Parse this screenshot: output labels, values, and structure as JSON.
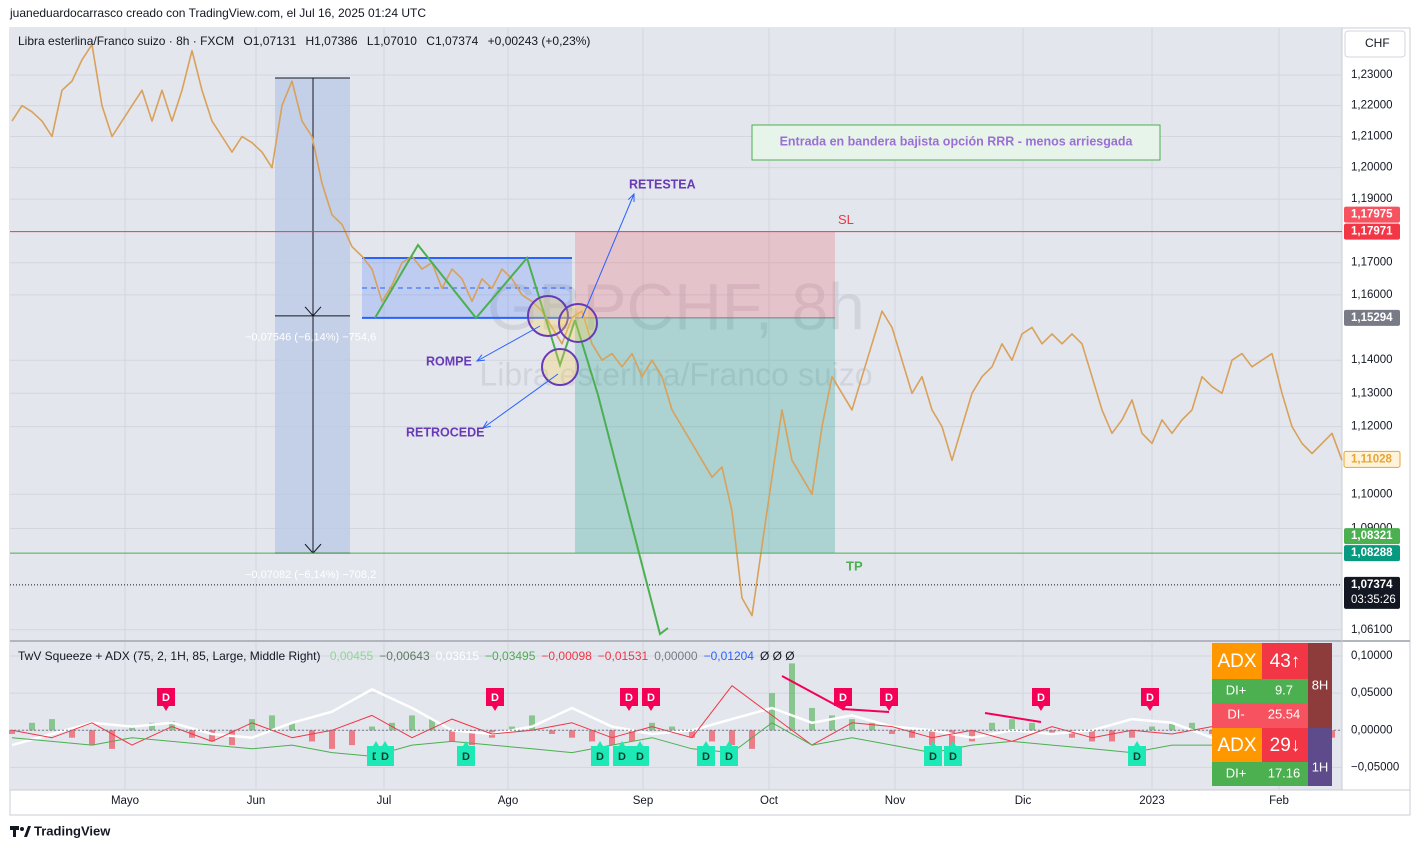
{
  "header": {
    "caption": "juaneduardocarrasco creado con TradingView.com, el Jul 16, 2025 01:24 UTC"
  },
  "footer": {
    "brand": "TradingView"
  },
  "chart_data": [
    {
      "type": "line",
      "title": "Libra esterlina/Franco suizo · 8h · FXCM",
      "ohlc_legend": [
        "O1,07131",
        "H1,07386",
        "L1,07010",
        "C1,07374",
        "+0,00243 (+0,23%)"
      ],
      "watermark": [
        "GBPCHF, 8h",
        "Libra esterlina/Franco suizo"
      ],
      "currency": "CHF",
      "log_scale": true,
      "grid": true,
      "color": "#d9a15a",
      "xlim": [
        -0.2,
        133
      ],
      "xticks": [
        {
          "value": 11.3,
          "label": "Mayo"
        },
        {
          "value": 24.4,
          "label": "Jun"
        },
        {
          "value": 37.2,
          "label": "Jul"
        },
        {
          "value": 49.6,
          "label": "Ago"
        },
        {
          "value": 63.1,
          "label": "Sep"
        },
        {
          "value": 75.7,
          "label": "Oct"
        },
        {
          "value": 88.3,
          "label": "Nov"
        },
        {
          "value": 101.1,
          "label": "Dic"
        },
        {
          "value": 114,
          "label": "2023"
        },
        {
          "value": 126.7,
          "label": "Feb"
        }
      ],
      "ylim": [
        1.0581,
        1.2455
      ],
      "yticks": [
        {
          "value": 1.23,
          "label": "1,23000"
        },
        {
          "value": 1.22,
          "label": "1,22000"
        },
        {
          "value": 1.21,
          "label": "1,21000"
        },
        {
          "value": 1.2,
          "label": "1,20000"
        },
        {
          "value": 1.19,
          "label": "1,19000"
        },
        {
          "value": 1.17,
          "label": "1,17000"
        },
        {
          "value": 1.16,
          "label": "1,16000"
        },
        {
          "value": 1.14,
          "label": "1,14000"
        },
        {
          "value": 1.13,
          "label": "1,13000"
        },
        {
          "value": 1.12,
          "label": "1,12000"
        },
        {
          "value": 1.1,
          "label": "1,10000"
        },
        {
          "value": 1.09,
          "label": "1,09000"
        },
        {
          "value": 1.061,
          "label": "1,06100"
        }
      ],
      "x": [
        0,
        1,
        2,
        3,
        4,
        5,
        6,
        7,
        8,
        9,
        10,
        11,
        12,
        13,
        14,
        15,
        16,
        17,
        18,
        19,
        20,
        21,
        22,
        23,
        24,
        25,
        26,
        27,
        28,
        29,
        30,
        31,
        32,
        33,
        34,
        35,
        36,
        37,
        38,
        39,
        40,
        41,
        42,
        43,
        44,
        45,
        46,
        47,
        48,
        49,
        50,
        51,
        52,
        53,
        54,
        55,
        56,
        57,
        58,
        59,
        60,
        61,
        62,
        63,
        64,
        65,
        66,
        67,
        68,
        69,
        70,
        71,
        72,
        73,
        74,
        75,
        76,
        77,
        78,
        79,
        80,
        81,
        82,
        83,
        84,
        85,
        86,
        87,
        88,
        89,
        90,
        91,
        92,
        93,
        94,
        95,
        96,
        97,
        98,
        99,
        100,
        101,
        102,
        103,
        104,
        105,
        106,
        107,
        108,
        109,
        110,
        111,
        112,
        113,
        114,
        115,
        116,
        117,
        118,
        119,
        120,
        121,
        122,
        123,
        124,
        125,
        126,
        127,
        128,
        129,
        130,
        131,
        132,
        133
      ],
      "values": [
        1.215,
        1.22,
        1.218,
        1.215,
        1.21,
        1.225,
        1.228,
        1.235,
        1.24,
        1.22,
        1.21,
        1.215,
        1.22,
        1.225,
        1.215,
        1.225,
        1.215,
        1.225,
        1.238,
        1.225,
        1.215,
        1.21,
        1.205,
        1.21,
        1.208,
        1.205,
        1.2,
        1.22,
        1.228,
        1.215,
        1.21,
        1.195,
        1.185,
        1.182,
        1.175,
        1.172,
        1.168,
        1.158,
        1.163,
        1.17,
        1.172,
        1.168,
        1.17,
        1.162,
        1.168,
        1.165,
        1.158,
        1.165,
        1.162,
        1.168,
        1.165,
        1.16,
        1.158,
        1.155,
        1.15,
        1.145,
        1.153,
        1.155,
        1.145,
        1.14,
        1.142,
        1.138,
        1.142,
        1.135,
        1.14,
        1.135,
        1.125,
        1.12,
        1.115,
        1.11,
        1.105,
        1.108,
        1.095,
        1.07,
        1.065,
        1.085,
        1.105,
        1.125,
        1.11,
        1.105,
        1.1,
        1.12,
        1.135,
        1.13,
        1.125,
        1.135,
        1.145,
        1.155,
        1.15,
        1.14,
        1.13,
        1.135,
        1.125,
        1.12,
        1.11,
        1.12,
        1.13,
        1.135,
        1.138,
        1.145,
        1.14,
        1.148,
        1.15,
        1.145,
        1.148,
        1.145,
        1.148,
        1.145,
        1.135,
        1.125,
        1.118,
        1.122,
        1.128,
        1.118,
        1.115,
        1.122,
        1.118,
        1.122,
        1.125,
        1.135,
        1.132,
        1.13,
        1.14,
        1.142,
        1.138,
        1.14,
        1.142,
        1.13,
        1.12,
        1.115,
        1.112,
        1.115,
        1.118,
        1.11
      ],
      "price_labels": [
        {
          "value": 1.17975,
          "label": "1,17975",
          "color": "#f7525f",
          "text_color": "#ffffff"
        },
        {
          "value": 1.17971,
          "label": "1,17971",
          "color": "#f23645",
          "text_color": "#ffffff"
        },
        {
          "value": 1.15294,
          "label": "1,15294",
          "color": "#787b86",
          "text_color": "#ffffff"
        },
        {
          "value": 1.11028,
          "label": "1,11028",
          "color": "#fff3dc",
          "text_color": "#e8a530"
        },
        {
          "value": 1.08321,
          "label": "1,08321",
          "color": "#4caf50",
          "text_color": "#ffffff"
        },
        {
          "value": 1.08288,
          "label": "1,08288",
          "color": "#089981",
          "text_color": "#ffffff"
        },
        {
          "value": 1.07374,
          "label": "1,07374",
          "color": "#131722",
          "text_color": "#ffffff"
        }
      ],
      "countdown": "03:35:26",
      "sl_label": "SL",
      "tp_label": "TP",
      "measure_labels": [
        "−0,07546 (−6,14%) −754,6",
        "−0,07082 (−6,14%) −708,2"
      ],
      "note": "Entrada en bandera bajista opción RRR - menos arriesgada",
      "callouts": [
        "RETESTEA",
        "ROMPE",
        "RETROCEDE"
      ]
    },
    {
      "type": "squeeze",
      "title": "TwV Squeeze + ADX (75, 2, 1H, 85, Large, Middle Right)",
      "legend_values": [
        {
          "text": "0,00455",
          "color": "#8fd694"
        },
        {
          "text": "−0,00643",
          "color": "#5d7a5f"
        },
        {
          "text": "0,03615",
          "color": "#ffffff"
        },
        {
          "text": "−0,03495",
          "color": "#4caf50"
        },
        {
          "text": "−0,00098",
          "color": "#f23645"
        },
        {
          "text": "−0,01531",
          "color": "#f23645"
        },
        {
          "text": "0,00000",
          "color": "#787b86"
        },
        {
          "text": "−0,01204",
          "color": "#2962ff"
        },
        {
          "text": "Ø  Ø  Ø",
          "color": "#131722"
        }
      ],
      "xlim": [
        -0.2,
        133
      ],
      "ylim": [
        -0.0804,
        0.1188
      ],
      "yticks": [
        {
          "value": 0.1,
          "label": "0,10000"
        },
        {
          "value": 0.05,
          "label": "0,05000"
        },
        {
          "value": 0,
          "label": "0,00000"
        },
        {
          "value": -0.05,
          "label": "−0,05000"
        }
      ],
      "series": [
        {
          "kind": "histogram",
          "positive_color": "#4caf50",
          "negative_color": "#f23645",
          "x": [
            0,
            2,
            4,
            6,
            8,
            10,
            12,
            14,
            16,
            18,
            20,
            22,
            24,
            26,
            28,
            30,
            32,
            34,
            36,
            38,
            40,
            42,
            44,
            46,
            48,
            50,
            52,
            54,
            56,
            58,
            60,
            62,
            64,
            66,
            68,
            70,
            72,
            74,
            76,
            78,
            80,
            82,
            84,
            86,
            88,
            90,
            92,
            94,
            96,
            98,
            100,
            102,
            104,
            106,
            108,
            110,
            112,
            114,
            116,
            118,
            120,
            122,
            124,
            126,
            128,
            130,
            132
          ],
          "values": [
            -0.005,
            0.01,
            0.015,
            -0.01,
            -0.02,
            -0.025,
            0.005,
            0.01,
            0.012,
            -0.01,
            -0.015,
            -0.02,
            0.015,
            0.02,
            0.01,
            -0.015,
            -0.025,
            -0.02,
            0.005,
            0.01,
            0.02,
            0.015,
            -0.015,
            -0.02,
            -0.01,
            0.005,
            0.02,
            -0.005,
            -0.01,
            -0.015,
            -0.02,
            -0.015,
            0.01,
            0.005,
            -0.01,
            -0.015,
            -0.02,
            -0.025,
            0.05,
            0.09,
            0.03,
            0.02,
            0.015,
            0.01,
            -0.005,
            -0.01,
            -0.02,
            -0.025,
            -0.015,
            0.01,
            0.015,
            0.01,
            -0.005,
            -0.01,
            -0.015,
            -0.015,
            -0.01,
            0.005,
            0.01,
            0.01,
            -0.005,
            -0.01,
            0.005,
            0.008,
            -0.01,
            -0.015,
            -0.01
          ]
        },
        {
          "kind": "line",
          "color": "#ffffff",
          "width": 2.5,
          "x": [
            0,
            4,
            8,
            12,
            16,
            20,
            24,
            28,
            32,
            36,
            40,
            44,
            48,
            52,
            56,
            60,
            64,
            68,
            72,
            76,
            80,
            84,
            88,
            92,
            96,
            100,
            104,
            108,
            112,
            116,
            120,
            124,
            128,
            132
          ],
          "values": [
            -0.02,
            -0.005,
            0.01,
            0.005,
            0.01,
            -0.005,
            -0.01,
            0.01,
            0.025,
            0.055,
            0.03,
            0,
            -0.005,
            0.005,
            0.03,
            0.005,
            -0.005,
            0,
            0.015,
            0.03,
            0.01,
            0.02,
            0.005,
            0,
            -0.01,
            0,
            -0.005,
            0,
            0.015,
            0.01,
            -0.01,
            -0.005,
            -0.01,
            -0.015
          ]
        },
        {
          "kind": "line",
          "color": "#f23645",
          "width": 1,
          "x": [
            0,
            4,
            8,
            12,
            16,
            20,
            24,
            28,
            32,
            36,
            40,
            44,
            48,
            52,
            56,
            60,
            64,
            68,
            72,
            76,
            80,
            84,
            88,
            92,
            96,
            100,
            104,
            108,
            112,
            116,
            120,
            124,
            128,
            132
          ],
          "values": [
            0,
            -0.01,
            0.01,
            -0.02,
            0.005,
            -0.015,
            0.01,
            -0.01,
            0,
            0.02,
            -0.01,
            0.015,
            -0.005,
            0,
            0.01,
            -0.01,
            0.005,
            -0.01,
            0.06,
            0.02,
            -0.02,
            0.01,
            0.005,
            -0.01,
            0,
            -0.015,
            0.005,
            -0.01,
            0,
            -0.005,
            0.005,
            -0.01,
            0,
            -0.005
          ]
        },
        {
          "kind": "line",
          "color": "#4caf50",
          "width": 1,
          "x": [
            0,
            4,
            8,
            12,
            16,
            20,
            24,
            28,
            32,
            36,
            40,
            44,
            48,
            52,
            56,
            60,
            64,
            68,
            72,
            76,
            80,
            84,
            88,
            92,
            96,
            100,
            104,
            108,
            112,
            116,
            120,
            124,
            128,
            132
          ],
          "values": [
            -0.01,
            -0.015,
            -0.02,
            -0.01,
            -0.015,
            -0.02,
            -0.025,
            -0.02,
            -0.03,
            -0.035,
            -0.02,
            -0.015,
            -0.02,
            -0.025,
            -0.03,
            -0.02,
            -0.01,
            -0.025,
            -0.03,
            0.01,
            -0.02,
            -0.01,
            -0.02,
            -0.03,
            -0.02,
            -0.015,
            -0.02,
            -0.025,
            -0.03,
            -0.02,
            -0.02,
            -0.025,
            -0.02,
            -0.025
          ]
        }
      ],
      "signals": {
        "label": "D",
        "bearish_color": "#f50057",
        "bullish_color": "#1de9b6",
        "bearish_x": [
          15.4,
          48.3,
          61.7,
          63.9,
          83.1,
          87.7,
          102.9,
          113.8
        ],
        "bullish_x": [
          36.4,
          37.3,
          45.4,
          58.8,
          61.0,
          62.8,
          69.4,
          71.7,
          92.1,
          94.1,
          112.5
        ]
      },
      "adx_panel": {
        "rows": [
          [
            "ADX",
            "43↑"
          ],
          [
            "DI+",
            "9.7"
          ],
          [
            "DI-",
            "25.54"
          ],
          [
            "ADX",
            "29↓"
          ],
          [
            "DI+",
            "17.16"
          ]
        ],
        "timeframes": [
          "8H",
          "1H"
        ]
      }
    }
  ]
}
